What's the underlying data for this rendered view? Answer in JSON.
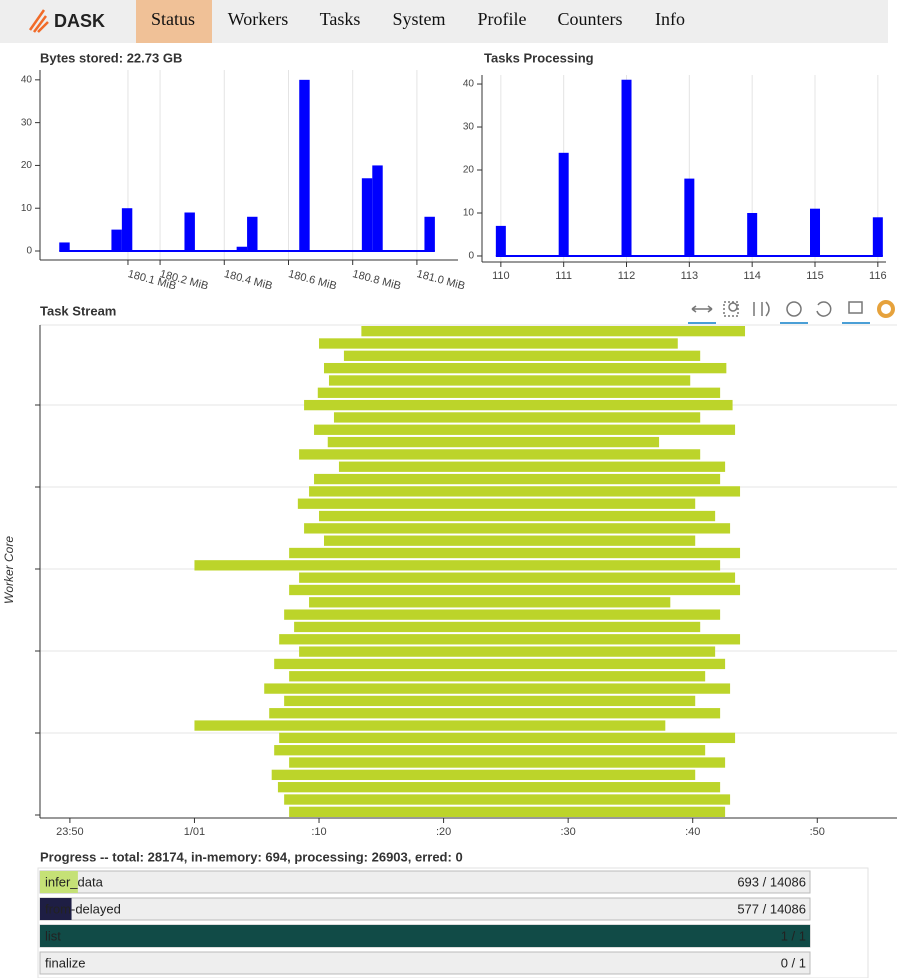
{
  "nav": {
    "brand": "DASK",
    "tabs": [
      "Status",
      "Workers",
      "Tasks",
      "System",
      "Profile",
      "Counters",
      "Info"
    ],
    "active": 0
  },
  "chart_data": [
    {
      "type": "histogram",
      "title": "Bytes stored: 22.73 GB",
      "color": "#0000ff",
      "grid": true,
      "xtick_label_angle": 15,
      "bins": [
        179.886,
        179.9185,
        179.951,
        179.9835,
        180.016,
        180.0485,
        180.081,
        180.1135,
        180.146,
        180.1785,
        180.211,
        180.2435,
        180.276,
        180.3085,
        180.341,
        180.3735,
        180.406,
        180.4385,
        180.471,
        180.5035,
        180.536,
        180.5685,
        180.601,
        180.6335,
        180.666,
        180.6985,
        180.731,
        180.7635,
        180.796,
        180.8285,
        180.861,
        180.8935,
        180.926,
        180.9585,
        180.991,
        181.0235,
        181.056
      ],
      "values": [
        2,
        0,
        0,
        0,
        0,
        5,
        10,
        0,
        0,
        0,
        0,
        0,
        9,
        0,
        0,
        0,
        0,
        1,
        8,
        0,
        0,
        0,
        0,
        40,
        0,
        0,
        0,
        0,
        0,
        17,
        20,
        0,
        0,
        0,
        0,
        8
      ],
      "xlim": [
        179.826,
        181.128
      ],
      "xticks": [
        {
          "value": 180.1,
          "label": "180.1 MiB"
        },
        {
          "value": 180.2,
          "label": "180.2 MiB"
        },
        {
          "value": 180.4,
          "label": "180.4 MiB"
        },
        {
          "value": 180.6,
          "label": "180.6 MiB"
        },
        {
          "value": 180.8,
          "label": "180.8 MiB"
        },
        {
          "value": 181.0,
          "label": "181.0 MiB"
        }
      ],
      "ylim": [
        -2.1,
        42.3
      ],
      "yticks": [
        0,
        10,
        20,
        30,
        40
      ]
    },
    {
      "type": "bar",
      "title": "Tasks Processing",
      "color": "#0000ff",
      "grid": true,
      "x": [
        110,
        111,
        112,
        113,
        114,
        115,
        116
      ],
      "values": [
        7,
        24,
        41,
        18,
        10,
        11,
        9
      ],
      "xlim": [
        109.7,
        116.13
      ],
      "xticks": [
        110,
        111,
        112,
        113,
        114,
        115,
        116
      ],
      "ylim": [
        -1.4,
        42.1
      ],
      "yticks": [
        0,
        10,
        20,
        30,
        40
      ]
    },
    {
      "type": "taskstream",
      "title": "Task Stream",
      "y_label": "Worker Core",
      "color": "#bcd42a",
      "starts": [
        13.4,
        10.0,
        12.0,
        10.4,
        10.8,
        9.9,
        8.8,
        11.2,
        9.6,
        10.7,
        8.4,
        11.6,
        9.6,
        9.2,
        8.3,
        10.0,
        8.8,
        10.4,
        7.6,
        0.0,
        8.4,
        7.6,
        9.2,
        7.2,
        8.0,
        6.8,
        8.4,
        6.4,
        7.6,
        5.6,
        7.2,
        6.0,
        0.0,
        6.8,
        6.4,
        7.6,
        6.2,
        6.7,
        7.2,
        7.6
      ],
      "ends": [
        44.2,
        38.8,
        40.6,
        42.7,
        39.8,
        42.2,
        43.2,
        40.6,
        43.4,
        37.3,
        40.6,
        42.6,
        42.2,
        43.8,
        40.2,
        41.8,
        43.0,
        40.2,
        43.8,
        42.2,
        43.4,
        43.8,
        38.2,
        42.2,
        40.6,
        43.8,
        41.8,
        42.6,
        41.0,
        43.0,
        40.2,
        42.2,
        37.8,
        43.4,
        41.0,
        42.6,
        40.2,
        42.2,
        43.0,
        42.6
      ],
      "xlim": [
        -12.4,
        56.4
      ],
      "xticks": [
        {
          "value": -10,
          "label": "23:50"
        },
        {
          "value": 0,
          "label": "1/01"
        },
        {
          "value": 10,
          "label": ":10"
        },
        {
          "value": 20,
          "label": ":20"
        },
        {
          "value": 30,
          "label": ":30"
        },
        {
          "value": 40,
          "label": ":40"
        },
        {
          "value": 50,
          "label": ":50"
        }
      ]
    }
  ],
  "progress": {
    "title": "Progress -- total: 28174, in-memory: 694, processing: 26903, erred: 0",
    "rows": [
      {
        "name": "infer_data",
        "done": 693,
        "total": 14086,
        "label": "693 / 14086",
        "color": "#c5e176"
      },
      {
        "name": "from-delayed",
        "done": 577,
        "total": 14086,
        "label": "577 / 14086",
        "color": "#1e1e44"
      },
      {
        "name": "list",
        "done": 1,
        "total": 1,
        "label": "1 / 1",
        "color": "#114b47"
      },
      {
        "name": "finalize",
        "done": 0,
        "total": 1,
        "label": "0 / 1",
        "color": "#c5e176"
      }
    ]
  }
}
